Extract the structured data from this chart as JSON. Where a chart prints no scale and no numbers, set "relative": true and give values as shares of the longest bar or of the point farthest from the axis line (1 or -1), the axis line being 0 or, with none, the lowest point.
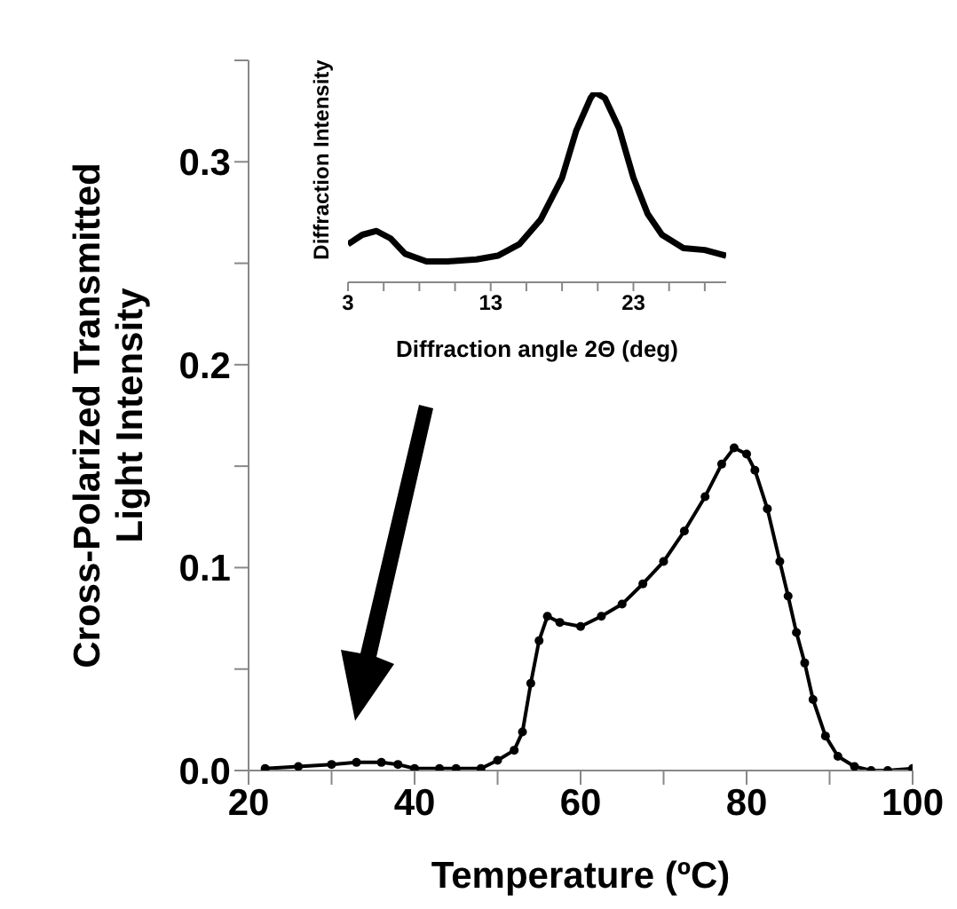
{
  "chart_data": [
    {
      "type": "line",
      "xlabel": "Temperature (ºC)",
      "ylabel": "Cross-Polarized Transmitted Light Intensity",
      "xlim": [
        20,
        100
      ],
      "xticks": [
        20,
        {
          "value": 30,
          "label": null
        },
        40,
        {
          "value": 50,
          "label": null
        },
        60,
        {
          "value": 70,
          "label": null
        },
        80,
        {
          "value": 90,
          "label": null
        },
        100
      ],
      "ylim": [
        0,
        0.35
      ],
      "yticks": [
        {
          "value": 0,
          "label": "0.0"
        },
        {
          "value": 0.05,
          "label": null
        },
        0.1,
        {
          "value": 0.15,
          "label": null
        },
        0.2,
        {
          "value": 0.25,
          "label": null
        },
        0.3,
        {
          "value": 0.35,
          "label": null
        }
      ],
      "marker": "circle",
      "grid": false,
      "legend": false,
      "series": [
        {
          "color": "#000000",
          "x": [
            22,
            26,
            30,
            33,
            36,
            38,
            40,
            43,
            45,
            48,
            50,
            52,
            53,
            54,
            55,
            56,
            57.5,
            60,
            62.5,
            65,
            67.5,
            70,
            72.5,
            75,
            77,
            78.5,
            80,
            81,
            82.5,
            84,
            85,
            86,
            87,
            88,
            89.5,
            91,
            93,
            95,
            97,
            100
          ],
          "values": [
            0.001,
            0.002,
            0.003,
            0.004,
            0.004,
            0.003,
            0.001,
            0.001,
            0.001,
            0.001,
            0.005,
            0.01,
            0.019,
            0.043,
            0.064,
            0.076,
            0.073,
            0.071,
            0.076,
            0.082,
            0.092,
            0.103,
            0.118,
            0.135,
            0.151,
            0.159,
            0.156,
            0.148,
            0.129,
            0.103,
            0.086,
            0.068,
            0.053,
            0.035,
            0.017,
            0.007,
            0.002,
            0.0,
            0.0,
            0.001
          ]
        }
      ]
    },
    {
      "type": "line",
      "xlabel": "Diffraction angle 2Θ (deg)",
      "ylabel": "Diffraction Intensity",
      "relative": true,
      "xlim": [
        3,
        29.5
      ],
      "xticks": [
        3,
        {
          "value": 5.5,
          "label": null
        },
        {
          "value": 8,
          "label": null
        },
        {
          "value": 10.5,
          "label": null
        },
        13,
        {
          "value": 15.5,
          "label": null
        },
        {
          "value": 18,
          "label": null
        },
        {
          "value": 20.5,
          "label": null
        },
        23,
        {
          "value": 25.5,
          "label": null
        },
        {
          "value": 28,
          "label": null
        }
      ],
      "grid": false,
      "legend": false,
      "series": [
        {
          "color": "#000000",
          "x": [
            3,
            4,
            5,
            6,
            7,
            8.5,
            10,
            12,
            13.5,
            15,
            16.5,
            18,
            19,
            20,
            20.3,
            21,
            22,
            23,
            24,
            25,
            26.5,
            28,
            29.5
          ],
          "values": [
            0.2,
            0.25,
            0.27,
            0.23,
            0.15,
            0.11,
            0.11,
            0.12,
            0.14,
            0.2,
            0.33,
            0.55,
            0.8,
            0.97,
            1,
            0.97,
            0.81,
            0.55,
            0.36,
            0.25,
            0.18,
            0.17,
            0.14
          ]
        }
      ]
    }
  ]
}
